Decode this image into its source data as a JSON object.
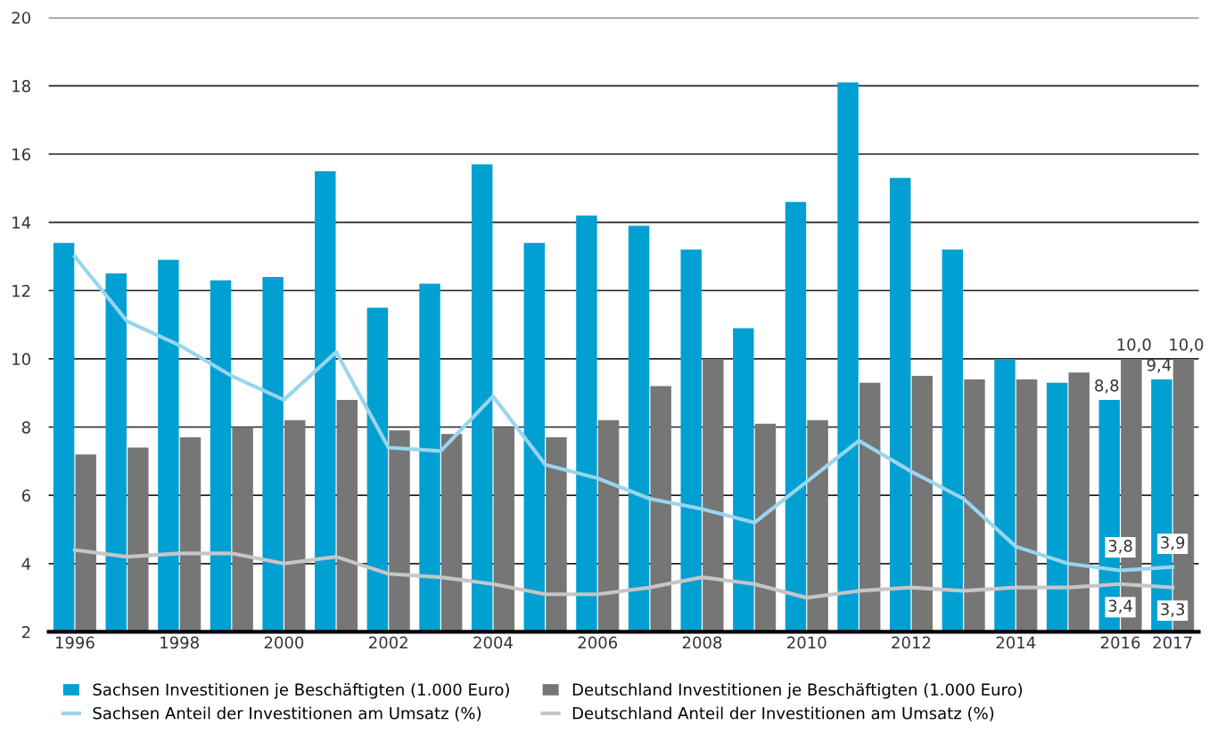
{
  "chart_data": {
    "type": "bar",
    "categories": [
      "1996",
      null,
      "1998",
      null,
      "2000",
      null,
      "2002",
      null,
      "2004",
      null,
      "2006",
      null,
      "2008",
      null,
      "2010",
      null,
      "2012",
      null,
      "2014",
      null,
      "2016",
      "2017"
    ],
    "series": [
      {
        "name": "Sachsen Investitionen je Beschäftigten (1.000 Euro)",
        "color": "#00a0d2",
        "values": [
          13.4,
          12.5,
          12.9,
          12.3,
          12.4,
          15.5,
          11.5,
          12.2,
          15.7,
          13.4,
          14.2,
          13.9,
          13.2,
          10.9,
          14.6,
          18.1,
          15.3,
          13.2,
          10.0,
          9.3,
          8.8,
          9.4
        ],
        "value_labels": [
          null,
          null,
          null,
          null,
          null,
          null,
          null,
          null,
          null,
          null,
          null,
          null,
          null,
          null,
          null,
          null,
          null,
          null,
          null,
          null,
          "8,8",
          "9,4"
        ]
      },
      {
        "name": "Deutschland Investitionen je Beschäftigten (1.000 Euro)",
        "color": "#767676",
        "values": [
          7.2,
          7.4,
          7.7,
          8.0,
          8.2,
          8.8,
          7.9,
          7.8,
          8.0,
          7.7,
          8.2,
          9.2,
          10.0,
          8.1,
          8.2,
          9.3,
          9.5,
          9.4,
          9.4,
          9.6,
          10.0,
          10.0
        ],
        "value_labels": [
          null,
          null,
          null,
          null,
          null,
          null,
          null,
          null,
          null,
          null,
          null,
          null,
          null,
          null,
          null,
          null,
          null,
          null,
          null,
          null,
          "10,0",
          "10,0"
        ]
      },
      {
        "name": "Sachsen Anteil der Investitionen am Umsatz (%)",
        "type": "line",
        "color": "#99d5ee",
        "values": [
          13.0,
          11.1,
          10.4,
          9.5,
          8.8,
          10.2,
          7.4,
          7.3,
          8.9,
          6.9,
          6.5,
          5.9,
          5.6,
          5.2,
          6.4,
          7.6,
          6.7,
          5.9,
          4.5,
          4.0,
          3.8,
          3.9
        ],
        "value_labels": [
          null,
          null,
          null,
          null,
          null,
          null,
          null,
          null,
          null,
          null,
          null,
          null,
          null,
          null,
          null,
          null,
          null,
          null,
          null,
          null,
          "3,8",
          "3,9"
        ]
      },
      {
        "name": "Deutschland Anteil der Investitionen am Umsatz (%)",
        "type": "line",
        "color": "#c6c6c6",
        "values": [
          4.4,
          4.2,
          4.3,
          4.3,
          4.0,
          4.2,
          3.7,
          3.6,
          3.4,
          3.1,
          3.1,
          3.3,
          3.6,
          3.4,
          3.0,
          3.2,
          3.3,
          3.2,
          3.3,
          3.3,
          3.4,
          3.3
        ],
        "value_labels": [
          null,
          null,
          null,
          null,
          null,
          null,
          null,
          null,
          null,
          null,
          null,
          null,
          null,
          null,
          null,
          null,
          null,
          null,
          null,
          null,
          "3,4",
          "3,3"
        ]
      }
    ],
    "ylim": [
      2,
      20
    ],
    "yticks": [
      2,
      4,
      6,
      8,
      10,
      12,
      14,
      16,
      18,
      20
    ],
    "grid": "y",
    "legend": "bottom",
    "marker": "none",
    "line_style": "solid"
  }
}
